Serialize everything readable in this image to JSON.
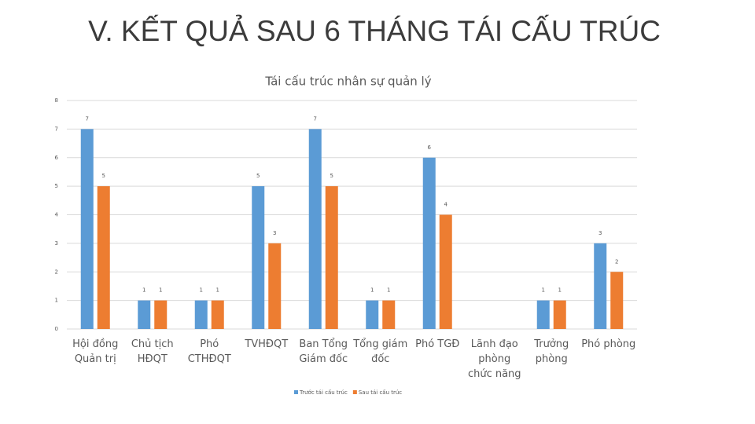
{
  "slide_title": "V. KẾT QUẢ SAU 6 THÁNG TÁI CẤU TRÚC",
  "chart_data": {
    "type": "bar",
    "title": "Tái cấu trúc nhân sự quản lý",
    "categories": [
      "Hội đồng Quản trị",
      "Chủ tịch HĐQT",
      "Phó CTHĐQT",
      "TVHĐQT",
      "Ban Tổng Giám đốc",
      "Tổng giám đốc",
      "Phó TGĐ",
      "Lãnh đạo phòng chức năng",
      "Trưởng phòng",
      "Phó phòng"
    ],
    "series": [
      {
        "name": "Trước tái cấu trúc",
        "color": "#5b9bd5",
        "values": [
          7,
          1,
          1,
          5,
          7,
          1,
          6,
          null,
          1,
          3
        ]
      },
      {
        "name": "Sau tái cấu trúc",
        "color": "#ed7d31",
        "values": [
          5,
          1,
          1,
          3,
          5,
          1,
          4,
          null,
          1,
          2
        ]
      }
    ],
    "ylim": [
      0,
      8
    ],
    "yticks": [
      0,
      1,
      2,
      3,
      4,
      5,
      6,
      7,
      8
    ],
    "grid": true,
    "legend": "bottom"
  }
}
